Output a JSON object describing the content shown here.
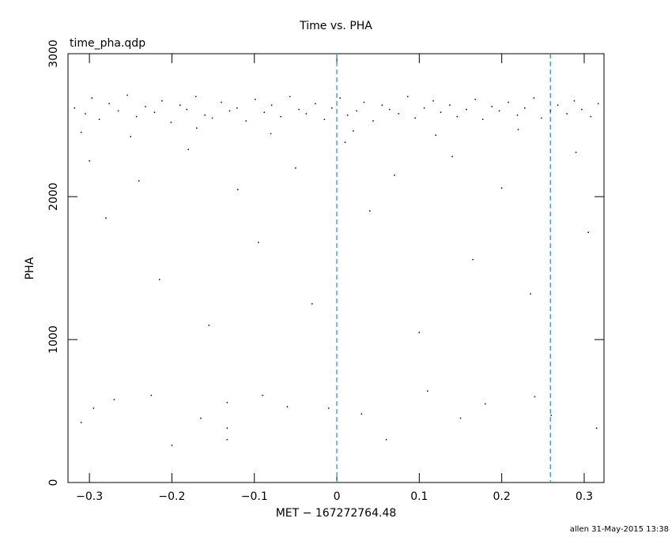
{
  "chart_data": {
    "type": "scatter",
    "title": "Time vs. PHA",
    "subtitle": "time_pha.qdp",
    "xlabel": "MET − 167272764.48",
    "ylabel": "PHA",
    "footer": "allen 31-May-2015 13:38",
    "xlim": [
      -0.326,
      0.324
    ],
    "ylim": [
      0,
      3000
    ],
    "xticks": [
      {
        "value": -0.3,
        "label": "−0.3"
      },
      {
        "value": -0.2,
        "label": "−0.2"
      },
      {
        "value": -0.1,
        "label": "−0.1"
      },
      0,
      0.1,
      0.2,
      0.3
    ],
    "yticks": [
      0,
      1000,
      2000,
      3000
    ],
    "vlines": [
      0,
      0.259
    ],
    "vline_color": "#3a8fc8",
    "grid": false,
    "series": [
      {
        "color": "#000000",
        "x": [
          -0.318,
          -0.305,
          -0.297,
          -0.288,
          -0.276,
          -0.265,
          -0.254,
          -0.243,
          -0.232,
          -0.221,
          -0.212,
          -0.201,
          -0.19,
          -0.182,
          -0.171,
          -0.16,
          -0.151,
          -0.14,
          -0.13,
          -0.121,
          -0.11,
          -0.099,
          -0.088,
          -0.079,
          -0.068,
          -0.057,
          -0.046,
          -0.037,
          -0.026,
          -0.015,
          -0.006,
          0.004,
          0.013,
          0.024,
          0.033,
          0.044,
          0.055,
          0.064,
          0.075,
          0.086,
          0.095,
          0.106,
          0.117,
          0.126,
          0.137,
          0.146,
          0.157,
          0.168,
          0.177,
          0.188,
          0.197,
          0.208,
          0.219,
          0.228,
          0.239,
          0.248,
          0.259,
          0.268,
          0.279,
          0.288,
          0.297,
          0.308,
          0.317,
          -0.31,
          -0.25,
          -0.17,
          -0.08,
          0.02,
          0.12,
          0.22,
          -0.3,
          -0.24,
          -0.18,
          -0.12,
          -0.05,
          0.01,
          0.07,
          0.14,
          0.2,
          0.29,
          -0.28,
          -0.215,
          -0.155,
          -0.095,
          -0.03,
          0.04,
          0.1,
          0.165,
          0.235,
          0.305,
          -0.295,
          -0.225,
          -0.165,
          -0.133,
          -0.133,
          -0.06,
          0.03,
          0.11,
          0.18,
          0.26,
          -0.31,
          -0.27,
          -0.2,
          -0.133,
          -0.09,
          -0.01,
          0.06,
          0.15,
          0.24,
          0.315
        ],
        "values": [
          2620,
          2580,
          2690,
          2540,
          2650,
          2600,
          2710,
          2560,
          2630,
          2590,
          2670,
          2520,
          2640,
          2610,
          2700,
          2570,
          2550,
          2660,
          2600,
          2620,
          2530,
          2680,
          2590,
          2640,
          2560,
          2700,
          2610,
          2580,
          2650,
          2540,
          2620,
          2690,
          2570,
          2600,
          2660,
          2530,
          2640,
          2610,
          2580,
          2700,
          2550,
          2620,
          2670,
          2590,
          2640,
          2560,
          2610,
          2680,
          2540,
          2630,
          2600,
          2660,
          2570,
          2620,
          2690,
          2550,
          2600,
          2640,
          2580,
          2670,
          2610,
          2560,
          2650,
          2450,
          2420,
          2480,
          2440,
          2460,
          2430,
          2470,
          2250,
          2110,
          2330,
          2050,
          2200,
          2380,
          2150,
          2280,
          2060,
          2310,
          1850,
          1420,
          1100,
          1680,
          1250,
          1900,
          1050,
          1560,
          1320,
          1750,
          520,
          610,
          450,
          380,
          560,
          530,
          480,
          640,
          550,
          470,
          420,
          580,
          260,
          300,
          610,
          520,
          300,
          450,
          600,
          380
        ]
      }
    ]
  }
}
